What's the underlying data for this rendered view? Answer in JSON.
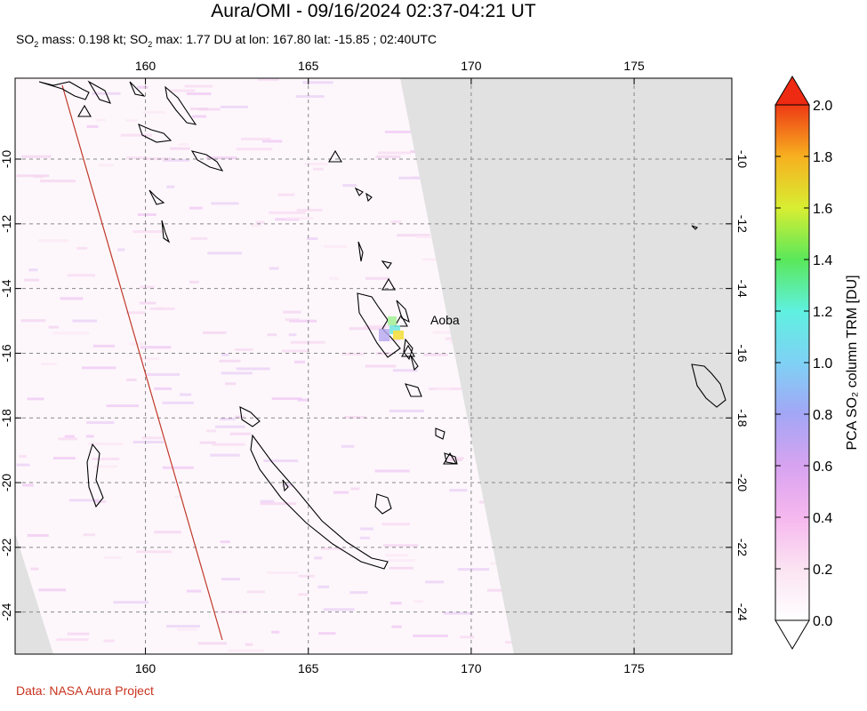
{
  "header": {
    "title": "Aura/OMI - 09/16/2024 02:37-04:21 UT",
    "subtitle_pre": "SO",
    "subtitle_sub1": "2",
    "subtitle_mid": " mass: 0.198 kt; SO",
    "subtitle_sub2": "2",
    "subtitle_post": " max: 1.77 DU at lon: 167.80 lat: -15.85 ; 02:40UTC"
  },
  "map": {
    "lon_range": [
      156,
      178
    ],
    "lat_range": [
      -25.3,
      -7.5
    ],
    "lon_ticks": [
      "160",
      "165",
      "170",
      "175"
    ],
    "lat_ticks": [
      "-10",
      "-12",
      "-14",
      "-16",
      "-18",
      "-20",
      "-22",
      "-24"
    ],
    "volcano_label": "Aoba",
    "max_point": {
      "lon": 167.8,
      "lat": -15.85,
      "value_du": 1.77
    },
    "colors": {
      "no_data": "#e1e1e1",
      "orbit_line": "#c0392b",
      "coast": "#000000"
    }
  },
  "colorbar": {
    "label": "PCA SO₂ column TRM [DU]",
    "ticks": [
      "0.0",
      "0.2",
      "0.4",
      "0.6",
      "0.8",
      "1.0",
      "1.2",
      "1.4",
      "1.6",
      "1.8",
      "2.0"
    ]
  },
  "footer": {
    "credit": "Data: NASA Aura Project"
  }
}
